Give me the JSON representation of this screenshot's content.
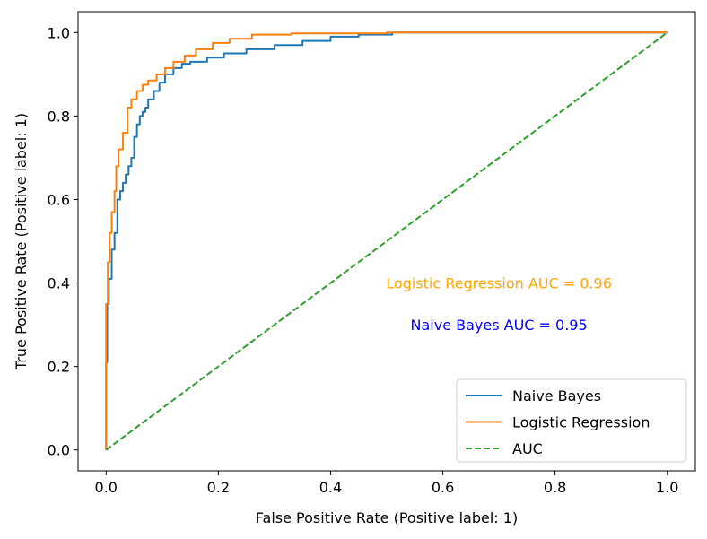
{
  "chart_data": {
    "type": "line",
    "xlabel": "False Positive Rate (Positive label: 1)",
    "ylabel": "True Positive Rate (Positive label: 1)",
    "xlim": [
      -0.05,
      1.05
    ],
    "ylim": [
      -0.05,
      1.05
    ],
    "xticks": [
      0.0,
      0.2,
      0.4,
      0.6,
      0.8,
      1.0
    ],
    "xtick_labels": [
      "0.0",
      "0.2",
      "0.4",
      "0.6",
      "0.8",
      "1.0"
    ],
    "yticks": [
      0.0,
      0.2,
      0.4,
      0.6,
      0.8,
      1.0
    ],
    "ytick_labels": [
      "0.0",
      "0.2",
      "0.4",
      "0.6",
      "0.8",
      "1.0"
    ],
    "grid": false,
    "legend_position": "lower-right",
    "series": [
      {
        "name": "Naive Bayes",
        "color": "#1f77b4",
        "style": "solid",
        "x": [
          0,
          0,
          0.002,
          0.002,
          0.005,
          0.005,
          0.01,
          0.01,
          0.015,
          0.015,
          0.02,
          0.02,
          0.025,
          0.025,
          0.03,
          0.03,
          0.035,
          0.035,
          0.04,
          0.04,
          0.045,
          0.045,
          0.05,
          0.05,
          0.055,
          0.055,
          0.06,
          0.06,
          0.065,
          0.065,
          0.07,
          0.07,
          0.075,
          0.075,
          0.085,
          0.085,
          0.095,
          0.095,
          0.105,
          0.105,
          0.12,
          0.12,
          0.135,
          0.135,
          0.15,
          0.15,
          0.18,
          0.18,
          0.21,
          0.21,
          0.25,
          0.25,
          0.3,
          0.3,
          0.35,
          0.35,
          0.4,
          0.4,
          0.45,
          0.45,
          0.51,
          0.51,
          0.81,
          0.81,
          1.0
        ],
        "y": [
          0,
          0.21,
          0.21,
          0.35,
          0.35,
          0.41,
          0.41,
          0.48,
          0.48,
          0.52,
          0.52,
          0.6,
          0.6,
          0.62,
          0.62,
          0.64,
          0.64,
          0.66,
          0.66,
          0.68,
          0.68,
          0.7,
          0.7,
          0.75,
          0.75,
          0.78,
          0.78,
          0.8,
          0.8,
          0.81,
          0.81,
          0.82,
          0.82,
          0.84,
          0.84,
          0.86,
          0.86,
          0.88,
          0.88,
          0.9,
          0.9,
          0.915,
          0.915,
          0.925,
          0.925,
          0.93,
          0.93,
          0.94,
          0.94,
          0.95,
          0.95,
          0.96,
          0.96,
          0.97,
          0.97,
          0.98,
          0.98,
          0.99,
          0.99,
          0.995,
          0.995,
          1.0,
          1.0,
          1.0,
          1.0
        ]
      },
      {
        "name": "Logistic Regression",
        "color": "#ff7f0e",
        "style": "solid",
        "x": [
          0,
          0,
          0.003,
          0.003,
          0.006,
          0.006,
          0.01,
          0.01,
          0.015,
          0.015,
          0.018,
          0.018,
          0.022,
          0.022,
          0.03,
          0.03,
          0.038,
          0.038,
          0.045,
          0.045,
          0.055,
          0.055,
          0.065,
          0.065,
          0.075,
          0.075,
          0.09,
          0.09,
          0.105,
          0.105,
          0.12,
          0.12,
          0.14,
          0.14,
          0.16,
          0.16,
          0.19,
          0.19,
          0.22,
          0.22,
          0.26,
          0.26,
          0.33,
          0.33,
          0.5,
          0.5,
          1.0
        ],
        "y": [
          0,
          0.35,
          0.35,
          0.45,
          0.45,
          0.52,
          0.52,
          0.57,
          0.57,
          0.62,
          0.62,
          0.68,
          0.68,
          0.72,
          0.72,
          0.76,
          0.76,
          0.82,
          0.82,
          0.84,
          0.84,
          0.86,
          0.86,
          0.875,
          0.875,
          0.885,
          0.885,
          0.9,
          0.9,
          0.915,
          0.915,
          0.93,
          0.93,
          0.945,
          0.945,
          0.96,
          0.96,
          0.975,
          0.975,
          0.985,
          0.985,
          0.995,
          0.995,
          0.998,
          0.998,
          1.0,
          1.0
        ]
      },
      {
        "name": "AUC",
        "color": "#2ca02c",
        "style": "dashed",
        "x": [
          0,
          1
        ],
        "y": [
          0,
          1
        ]
      }
    ],
    "annotations": [
      {
        "text": "Logistic Regression AUC = 0.96",
        "x": 0.7,
        "y": 0.4,
        "color": "#ffa500"
      },
      {
        "text": "Naive Bayes AUC = 0.95",
        "x": 0.7,
        "y": 0.3,
        "color": "#0000ff"
      }
    ]
  }
}
